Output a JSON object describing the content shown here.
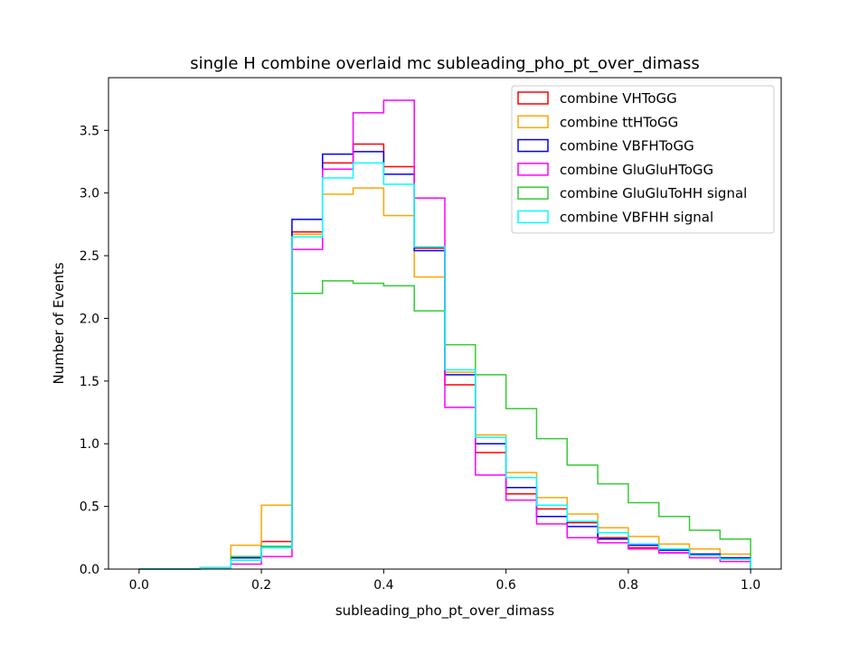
{
  "chart_data": {
    "type": "line",
    "title": "single H combine overlaid mc subleading_pho_pt_over_dimass",
    "xlabel": "subleading_pho_pt_over_dimass",
    "ylabel": "Number of Events",
    "xlim": [
      -0.05,
      1.05
    ],
    "ylim": [
      0,
      3.92
    ],
    "xticks": [
      0.0,
      0.2,
      0.4,
      0.6,
      0.8,
      1.0
    ],
    "xtick_labels": [
      "0.0",
      "0.2",
      "0.4",
      "0.6",
      "0.8",
      "1.0"
    ],
    "yticks": [
      0.0,
      0.5,
      1.0,
      1.5,
      2.0,
      2.5,
      3.0,
      3.5
    ],
    "ytick_labels": [
      "0.0",
      "0.5",
      "1.0",
      "1.5",
      "2.0",
      "2.5",
      "3.0",
      "3.5"
    ],
    "bin_edges": [
      0.0,
      0.05,
      0.1,
      0.15,
      0.2,
      0.25,
      0.3,
      0.35,
      0.4,
      0.45,
      0.5,
      0.55,
      0.6,
      0.65,
      0.7,
      0.75,
      0.8,
      0.85,
      0.9,
      0.95,
      1.0
    ],
    "legend_position": "top-right",
    "grid": false,
    "series": [
      {
        "name": "combine VHToGG",
        "color": "#ff0000",
        "values": [
          0.0,
          0.0,
          0.01,
          0.09,
          0.22,
          2.69,
          3.24,
          3.39,
          3.21,
          2.56,
          1.47,
          0.93,
          0.6,
          0.48,
          0.37,
          0.25,
          0.17,
          0.13,
          0.11,
          0.08
        ]
      },
      {
        "name": "combine ttHToGG",
        "color": "#ffa500",
        "values": [
          0.0,
          0.0,
          0.01,
          0.19,
          0.51,
          2.67,
          2.99,
          3.04,
          2.82,
          2.33,
          1.57,
          1.07,
          0.77,
          0.57,
          0.44,
          0.33,
          0.26,
          0.2,
          0.16,
          0.12
        ]
      },
      {
        "name": "combine VBFHToGG",
        "color": "#0000ff",
        "values": [
          0.0,
          0.0,
          0.01,
          0.09,
          0.18,
          2.79,
          3.31,
          3.33,
          3.15,
          2.54,
          1.55,
          1.0,
          0.65,
          0.42,
          0.34,
          0.24,
          0.19,
          0.15,
          0.12,
          0.09
        ]
      },
      {
        "name": "combine GluGluHToGG",
        "color": "#ff00ff",
        "values": [
          0.0,
          0.0,
          0.01,
          0.04,
          0.1,
          2.55,
          3.19,
          3.64,
          3.74,
          2.96,
          1.29,
          0.75,
          0.55,
          0.36,
          0.25,
          0.21,
          0.16,
          0.13,
          0.09,
          0.06
        ]
      },
      {
        "name": "combine GluGluToHH signal",
        "color": "#33cc33",
        "values": [
          0.0,
          0.0,
          0.01,
          0.1,
          0.18,
          2.2,
          2.3,
          2.28,
          2.26,
          2.06,
          1.79,
          1.55,
          1.28,
          1.04,
          0.83,
          0.68,
          0.53,
          0.42,
          0.31,
          0.24
        ]
      },
      {
        "name": "combine VBFHH signal",
        "color": "#00ffff",
        "values": [
          0.0,
          0.0,
          0.01,
          0.07,
          0.17,
          2.65,
          3.12,
          3.24,
          3.07,
          2.57,
          1.59,
          1.05,
          0.73,
          0.51,
          0.38,
          0.29,
          0.2,
          0.16,
          0.11,
          0.08
        ]
      }
    ]
  }
}
